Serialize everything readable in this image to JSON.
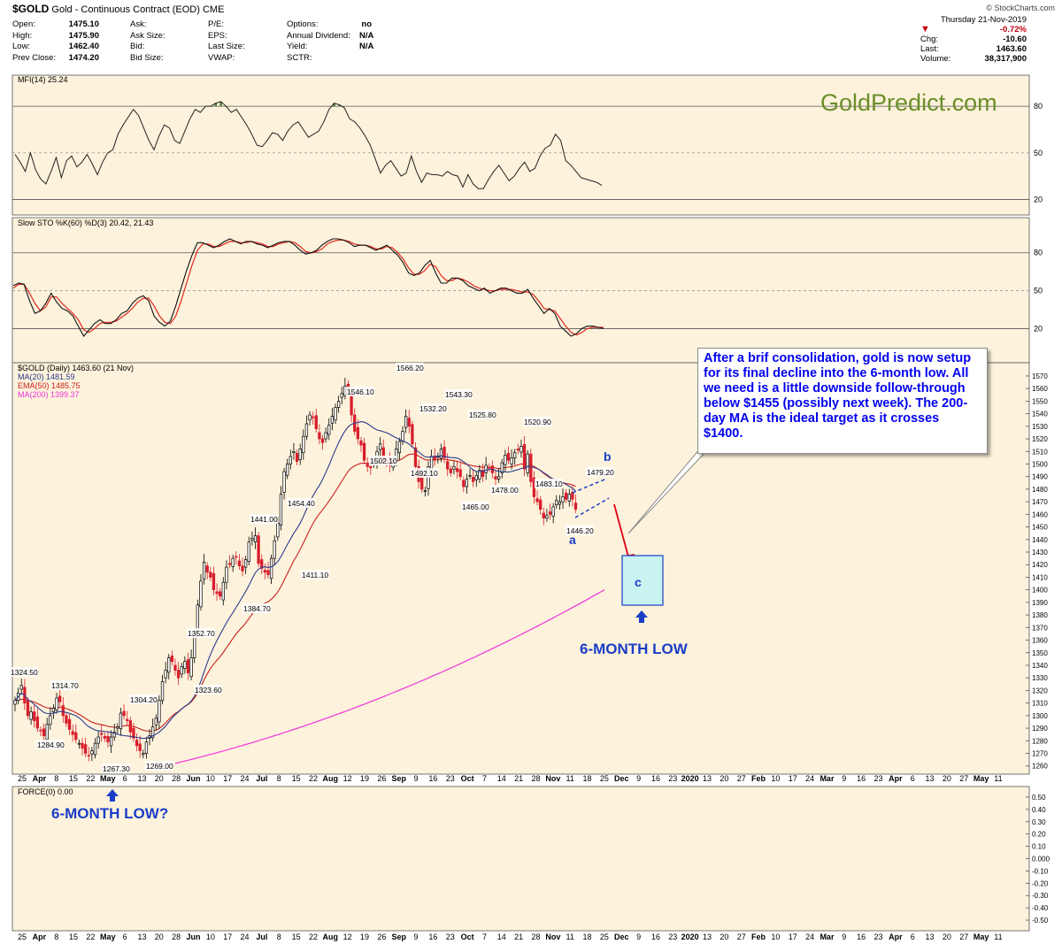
{
  "header": {
    "symbol": "$GOLD",
    "description": "Gold - Continuous Contract (EOD)",
    "exchange": "CME",
    "source": "© StockCharts.com"
  },
  "quote": {
    "open_label": "Open:",
    "open": "1475.10",
    "high_label": "High:",
    "high": "1475.90",
    "low_label": "Low:",
    "low": "1462.40",
    "prev_label": "Prev Close:",
    "prev": "1474.20",
    "ask_label": "Ask:",
    "ask": "",
    "asksize_label": "Ask Size:",
    "asksize": "",
    "bid_label": "Bid:",
    "bid": "",
    "bidsize_label": "Bid Size:",
    "bidsize": "",
    "pe_label": "P/E:",
    "pe": "",
    "eps_label": "EPS:",
    "eps": "",
    "lastsize_label": "Last Size:",
    "lastsize": "",
    "vwap_label": "VWAP:",
    "vwap": "",
    "options_label": "Options:",
    "options": "no",
    "div_label": "Annual Dividend:",
    "div": "N/A",
    "yield_label": "Yield:",
    "yield": "N/A",
    "sctr_label": "SCTR:",
    "sctr": ""
  },
  "summary": {
    "date": "Thursday 21-Nov-2019",
    "pct": "-0.72%",
    "chg_label": "Chg:",
    "chg": "-10.60",
    "last_label": "Last:",
    "last": "1463.60",
    "vol_label": "Volume:",
    "vol": "38,317,900"
  },
  "watermark": "GoldPredict.com",
  "annotation": {
    "text": "After a brif consolidation, gold is now setup for its final decline into the 6-month low. All we need is a little downside follow-through below $1455 (possibly next week). The 200-day MA is the ideal target as it crosses $1400."
  },
  "callouts": {
    "six_month_low": "6-MONTH LOW",
    "six_month_low_q": "6-MONTH LOW?",
    "wave_a": "a",
    "wave_b": "b",
    "wave_c": "c"
  },
  "colors": {
    "up": "#000000",
    "down": "#d81e2c",
    "ma20": "#2b3a8f",
    "ema50": "#c82020",
    "ma200": "#ee33dd",
    "panel_bg": "#fdf2db",
    "annotation_text": "#0000ee",
    "target_box": "#c8f3f0",
    "target_box_border": "#1a3dc8",
    "watermark": "#6b8e2a"
  },
  "chart_data": {
    "type": "candlestick",
    "panels": [
      {
        "name": "MFI",
        "legend": "MFI(14) 25.24",
        "y_ticks": [
          20,
          50,
          80
        ],
        "ylim": [
          10,
          100
        ],
        "values": [
          49,
          44,
          38,
          50,
          39,
          33,
          30,
          38,
          47,
          34,
          45,
          48,
          41,
          44,
          49,
          43,
          36,
          44,
          50,
          52,
          62,
          68,
          73,
          78,
          74,
          66,
          58,
          52,
          61,
          68,
          66,
          58,
          56,
          64,
          72,
          78,
          76,
          80,
          80,
          82,
          83,
          80,
          76,
          78,
          73,
          68,
          62,
          55,
          54,
          58,
          63,
          62,
          58,
          64,
          68,
          70,
          65,
          60,
          62,
          64,
          70,
          78,
          82,
          81,
          79,
          72,
          70,
          66,
          61,
          55,
          46,
          37,
          42,
          45,
          40,
          35,
          37,
          48,
          38,
          31,
          37,
          36,
          36,
          35,
          38,
          36,
          35,
          28,
          36,
          30,
          27,
          27,
          33,
          38,
          42,
          37,
          32,
          35,
          40,
          44,
          38,
          40,
          48,
          53,
          55,
          62,
          58,
          45,
          42,
          38,
          34,
          33,
          32,
          31,
          29
        ],
        "green_highlight": true
      },
      {
        "name": "Slow STO",
        "legend": "Slow STO %K(60) %D(3) 20.42, 21.43",
        "y_ticks": [
          20,
          50,
          80
        ],
        "ylim": [
          0,
          105
        ],
        "k": [
          54,
          56,
          55,
          42,
          32,
          34,
          40,
          48,
          41,
          36,
          34,
          30,
          22,
          14,
          19,
          24,
          27,
          24,
          24,
          27,
          32,
          34,
          40,
          44,
          46,
          42,
          30,
          25,
          22,
          26,
          38,
          52,
          66,
          78,
          88,
          88,
          86,
          84,
          86,
          89,
          91,
          89,
          87,
          89,
          89,
          87,
          86,
          84,
          86,
          88,
          89,
          89,
          86,
          82,
          79,
          80,
          82,
          86,
          89,
          91,
          91,
          90,
          88,
          85,
          86,
          86,
          84,
          82,
          84,
          86,
          82,
          78,
          72,
          64,
          62,
          64,
          70,
          74,
          64,
          56,
          56,
          60,
          60,
          58,
          54,
          52,
          50,
          52,
          48,
          50,
          52,
          52,
          50,
          48,
          48,
          51,
          44,
          38,
          32,
          36,
          32,
          22,
          18,
          14,
          16,
          20,
          22,
          22,
          21,
          20
        ],
        "d": [
          52,
          55,
          55,
          48,
          40,
          34,
          37,
          45,
          45,
          40,
          36,
          32,
          27,
          19,
          17,
          20,
          24,
          25,
          25,
          26,
          29,
          32,
          36,
          41,
          44,
          44,
          38,
          30,
          25,
          24,
          30,
          42,
          56,
          70,
          82,
          87,
          87,
          85,
          85,
          87,
          89,
          89,
          88,
          88,
          89,
          88,
          87,
          85,
          85,
          87,
          88,
          89,
          88,
          85,
          81,
          80,
          81,
          83,
          87,
          89,
          90,
          90,
          89,
          87,
          86,
          86,
          85,
          83,
          83,
          85,
          84,
          80,
          75,
          68,
          63,
          63,
          66,
          71,
          69,
          62,
          58,
          58,
          60,
          59,
          57,
          54,
          52,
          51,
          50,
          50,
          51,
          51,
          51,
          50,
          49,
          49,
          47,
          42,
          36,
          35,
          34,
          28,
          22,
          17,
          15,
          17,
          20,
          21,
          21,
          21
        ]
      },
      {
        "name": "$GOLD (Daily)",
        "legend": [
          "$GOLD (Daily) 1463.60 (21 Nov)",
          "MA(20) 1481.59",
          "EMA(50) 1485.75",
          "MA(200) 1399.37"
        ],
        "ylim": [
          1257,
          1577
        ],
        "y_ticks": [
          1260,
          1270,
          1280,
          1290,
          1300,
          1310,
          1320,
          1330,
          1340,
          1350,
          1360,
          1370,
          1380,
          1390,
          1400,
          1410,
          1420,
          1430,
          1440,
          1450,
          1460,
          1470,
          1480,
          1490,
          1500,
          1510,
          1520,
          1530,
          1540,
          1550,
          1560,
          1570
        ],
        "close": [
          1312,
          1318,
          1324,
          1310,
          1300,
          1303,
          1296,
          1290,
          1288,
          1284,
          1293,
          1300,
          1306,
          1314,
          1311,
          1300,
          1294,
          1289,
          1285,
          1281,
          1278,
          1274,
          1270,
          1268,
          1272,
          1278,
          1283,
          1285,
          1282,
          1279,
          1283,
          1287,
          1291,
          1302,
          1300,
          1296,
          1287,
          1282,
          1276,
          1272,
          1270,
          1279,
          1284,
          1291,
          1298,
          1312,
          1327,
          1336,
          1346,
          1343,
          1336,
          1330,
          1339,
          1343,
          1334,
          1346,
          1365,
          1388,
          1407,
          1422,
          1414,
          1410,
          1400,
          1397,
          1395,
          1406,
          1418,
          1420,
          1425,
          1426,
          1419,
          1415,
          1424,
          1438,
          1441,
          1443,
          1421,
          1417,
          1414,
          1412,
          1425,
          1439,
          1453,
          1476,
          1494,
          1500,
          1506,
          1510,
          1502,
          1512,
          1522,
          1532,
          1539,
          1537,
          1528,
          1520,
          1517,
          1525,
          1531,
          1538,
          1545,
          1550,
          1556,
          1562,
          1560,
          1539,
          1526,
          1520,
          1515,
          1503,
          1498,
          1497,
          1502,
          1510,
          1516,
          1503,
          1502,
          1499,
          1501,
          1512,
          1518,
          1526,
          1538,
          1530,
          1516,
          1498,
          1486,
          1480,
          1479,
          1498,
          1506,
          1503,
          1506,
          1512,
          1505,
          1496,
          1493,
          1498,
          1494,
          1490,
          1482,
          1488,
          1491,
          1486,
          1491,
          1495,
          1490,
          1499,
          1497,
          1493,
          1488,
          1490,
          1501,
          1507,
          1503,
          1505,
          1509,
          1511,
          1514,
          1496,
          1508,
          1486,
          1474,
          1470,
          1464,
          1457,
          1459,
          1460,
          1466,
          1471,
          1470,
          1474,
          1472,
          1476,
          1472,
          1464
        ],
        "annotated_values": [
          {
            "label": "1324.50"
          },
          {
            "label": "1314.70"
          },
          {
            "label": "1284.90"
          },
          {
            "label": "1304.20"
          },
          {
            "label": "1267.30"
          },
          {
            "label": "1269.00"
          },
          {
            "label": "1352.70"
          },
          {
            "label": "1323.60"
          },
          {
            "label": "1441.00"
          },
          {
            "label": "1384.70"
          },
          {
            "label": "1454.40"
          },
          {
            "label": "1411.10"
          },
          {
            "label": "1546.10"
          },
          {
            "label": "1502.10"
          },
          {
            "label": "1566.20"
          },
          {
            "label": "1532.20"
          },
          {
            "label": "1492.10"
          },
          {
            "label": "1543.30"
          },
          {
            "label": "1465.00"
          },
          {
            "label": "1525.80"
          },
          {
            "label": "1478.00"
          },
          {
            "label": "1520.90"
          },
          {
            "label": "1483.10"
          },
          {
            "label": "1446.20"
          },
          {
            "label": "1479.20"
          }
        ],
        "ma200_end": 1399.37,
        "target_zone": [
          1380,
          1420
        ]
      },
      {
        "name": "FORCE",
        "legend": "FORCE(0) 0.00",
        "y_ticks": [
          -0.5,
          -0.4,
          -0.3,
          -0.2,
          -0.1,
          0.0,
          0.1,
          0.2,
          0.3,
          0.4,
          0.5
        ],
        "y_tick_labels": [
          "-0.50",
          "-0.40",
          "-0.30",
          "-0.20",
          "-0.10",
          "0.000",
          "0.10",
          "0.20",
          "0.30",
          "0.40",
          "0.50"
        ],
        "ylim": [
          -0.55,
          0.55
        ]
      }
    ],
    "x_axis_labels": [
      "25",
      "Apr",
      "8",
      "15",
      "22",
      "May",
      "6",
      "13",
      "20",
      "28",
      "Jun",
      "10",
      "17",
      "24",
      "Jul",
      "8",
      "15",
      "22",
      "Aug",
      "12",
      "19",
      "26",
      "Sep",
      "9",
      "16",
      "23",
      "Oct",
      "7",
      "14",
      "21",
      "28",
      "Nov",
      "11",
      "18",
      "25",
      "Dec",
      "9",
      "16",
      "23",
      "2020",
      "13",
      "20",
      "27",
      "Feb",
      "10",
      "17",
      "24",
      "Mar",
      "9",
      "16",
      "23",
      "Apr",
      "6",
      "13",
      "20",
      "27",
      "May",
      "11"
    ],
    "x_axis_bold": [
      "Apr",
      "May",
      "Jun",
      "Jul",
      "Aug",
      "Sep",
      "Oct",
      "Nov",
      "Dec",
      "2020",
      "Feb",
      "Mar",
      "Apr",
      "May"
    ]
  }
}
